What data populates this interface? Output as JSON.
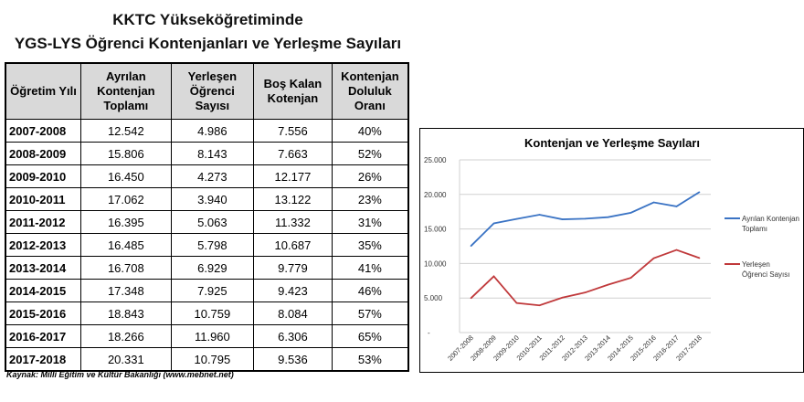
{
  "title_line1": "KKTC Yükseköğretiminde",
  "title_line2": "YGS-LYS Öğrenci Kontenjanları ve Yerleşme Sayıları",
  "table": {
    "headers": [
      "Öğretim Yılı",
      "Ayrılan Kontenjan Toplamı",
      "Yerleşen Öğrenci Sayısı",
      "Boş Kalan Kotenjan",
      "Kontenjan Doluluk Oranı"
    ],
    "rows": [
      [
        "2007-2008",
        "12.542",
        "4.986",
        "7.556",
        "40%"
      ],
      [
        "2008-2009",
        "15.806",
        "8.143",
        "7.663",
        "52%"
      ],
      [
        "2009-2010",
        "16.450",
        "4.273",
        "12.177",
        "26%"
      ],
      [
        "2010-2011",
        "17.062",
        "3.940",
        "13.122",
        "23%"
      ],
      [
        "2011-2012",
        "16.395",
        "5.063",
        "11.332",
        "31%"
      ],
      [
        "2012-2013",
        "16.485",
        "5.798",
        "10.687",
        "35%"
      ],
      [
        "2013-2014",
        "16.708",
        "6.929",
        "9.779",
        "41%"
      ],
      [
        "2014-2015",
        "17.348",
        "7.925",
        "9.423",
        "46%"
      ],
      [
        "2015-2016",
        "18.843",
        "10.759",
        "8.084",
        "57%"
      ],
      [
        "2016-2017",
        "18.266",
        "11.960",
        "6.306",
        "65%"
      ],
      [
        "2017-2018",
        "20.331",
        "10.795",
        "9.536",
        "53%"
      ]
    ]
  },
  "source": "Kaynak: Milli Eğitim ve Kültür Bakanlığı (www.mebnet.net)",
  "chart_data": {
    "type": "line",
    "title": "Kontenjan ve Yerleşme Sayıları",
    "categories": [
      "2007-2008",
      "2008-2009",
      "2009-2010",
      "2010-2011",
      "2011-2012",
      "2012-2013",
      "2013-2014",
      "2014-2015",
      "2015-2016",
      "2016-2017",
      "2017-2018"
    ],
    "ylim": [
      0,
      25000
    ],
    "yticks": [
      "-",
      "5.000",
      "10.000",
      "15.000",
      "20.000",
      "25.000"
    ],
    "grid": true,
    "legend": "right",
    "series": [
      {
        "name": "Ayrılan Kontenjan Toplamı",
        "color": "#3a73c4",
        "values": [
          12542,
          15806,
          16450,
          17062,
          16395,
          16485,
          16708,
          17348,
          18843,
          18266,
          20331
        ]
      },
      {
        "name": "Yerleşen Öğrenci Sayısı",
        "color": "#c0393b",
        "values": [
          4986,
          8143,
          4273,
          3940,
          5063,
          5798,
          6929,
          7925,
          10759,
          11960,
          10795
        ]
      }
    ]
  }
}
